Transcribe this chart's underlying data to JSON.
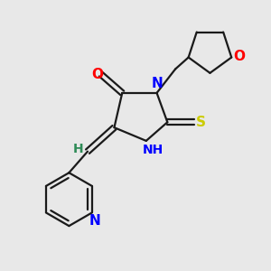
{
  "background_color": "#e8e8e8",
  "bond_color": "#1a1a1a",
  "N_color": "#0000ff",
  "O_color": "#ff0000",
  "S_color": "#cccc00",
  "H_color": "#2e8b57",
  "figsize": [
    3.0,
    3.0
  ],
  "dpi": 100,
  "xlim": [
    0,
    10
  ],
  "ylim": [
    0,
    10
  ]
}
